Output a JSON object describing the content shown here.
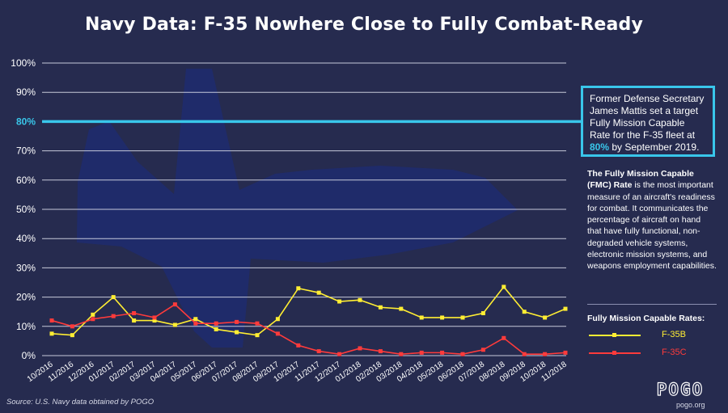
{
  "title": "Navy Data: F-35 Nowhere Close to Fully Combat-Ready",
  "callout": {
    "text_before": "Former Defense Secretary James Mattis set a target Fully Mission Capable Rate for the F-35 fleet at ",
    "highlight": "80%",
    "text_after": " by September 2019."
  },
  "fmc_note": {
    "bold": "The Fully Mission Capable (FMC) Rate",
    "text": " is the most important measure of an aircraft's readiness for combat. It communicates the percentage of aircraft on hand that have fully functional, non-degraded vehicle systems, electronic mission systems, and weapons employment capabilities."
  },
  "legend": {
    "title": "Fully Mission Capable Rates:",
    "items": [
      {
        "name": "F-35B",
        "color": "#ffee33"
      },
      {
        "name": "F-35C",
        "color": "#ff3b3b"
      }
    ]
  },
  "source": "Source: U.S. Navy data obtained by POGO",
  "logo": "POGO",
  "site": "pogo.org",
  "colors": {
    "background": "#262b4f",
    "target": "#39c6ea",
    "f35b": "#ffee33",
    "f35c": "#ff3b3b"
  },
  "chart_data": {
    "type": "line",
    "title": "Navy Data: F-35 Nowhere Close to Fully Combat-Ready",
    "xlabel": "",
    "ylabel": "",
    "ylim": [
      0,
      100
    ],
    "yticks": [
      "0%",
      "10%",
      "20%",
      "30%",
      "40%",
      "50%",
      "60%",
      "70%",
      "80%",
      "90%",
      "100%"
    ],
    "target_line": {
      "value": 80,
      "label": "80%"
    },
    "categories": [
      "10/2016",
      "11/2016",
      "12/2016",
      "01/2017",
      "02/2017",
      "03/2017",
      "04/2017",
      "05/2017",
      "06/2017",
      "07/2017",
      "08/2017",
      "09/2017",
      "10/2017",
      "11/2017",
      "12/2017",
      "01/2018",
      "02/2018",
      "03/2018",
      "04/2018",
      "05/2018",
      "06/2018",
      "07/2018",
      "08/2018",
      "09/2018",
      "10/2018",
      "11/2018"
    ],
    "series": [
      {
        "name": "F-35B",
        "values": [
          7.5,
          7,
          14,
          20,
          12,
          12,
          10.5,
          12.5,
          9,
          8,
          7,
          12.5,
          23,
          21.5,
          18.5,
          19,
          16.5,
          16,
          13,
          13,
          13,
          14.5,
          23.5,
          15,
          13,
          16
        ]
      },
      {
        "name": "F-35C",
        "values": [
          12,
          10,
          12.5,
          13.5,
          14.5,
          13,
          17.5,
          11,
          11,
          11.5,
          11,
          7.5,
          3.5,
          1.5,
          0.5,
          2.5,
          1.5,
          0.5,
          1,
          1,
          0.5,
          2,
          6,
          0.5,
          0.5,
          1
        ]
      }
    ]
  }
}
